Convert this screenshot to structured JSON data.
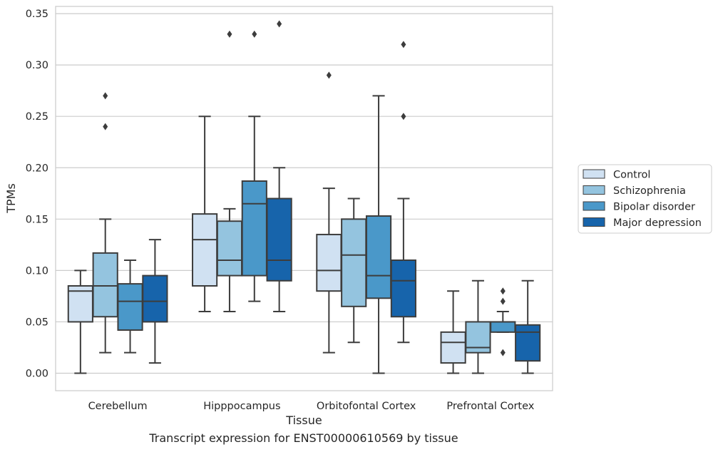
{
  "caption": "Transcript expression for ENST00000610569 by tissue",
  "chart_data": {
    "type": "box",
    "xlabel": "Tissue",
    "ylabel": "TPMs",
    "ylim": [
      -0.017,
      0.357
    ],
    "yticks": [
      0.0,
      0.05,
      0.1,
      0.15,
      0.2,
      0.25,
      0.3,
      0.35
    ],
    "ytick_labels": [
      "0.00",
      "0.05",
      "0.10",
      "0.15",
      "0.20",
      "0.25",
      "0.30",
      "0.35"
    ],
    "grid": "horizontal",
    "legend_position": "right",
    "categories": [
      "Cerebellum",
      "Hipppocampus",
      "Orbitofontal Cortex",
      "Prefrontal Cortex"
    ],
    "series": [
      {
        "name": "Control",
        "color": "#d0e1f2",
        "boxes": [
          {
            "whislo": 0.0,
            "q1": 0.05,
            "med": 0.08,
            "q3": 0.085,
            "whishi": 0.1,
            "fliers": []
          },
          {
            "whislo": 0.06,
            "q1": 0.085,
            "med": 0.13,
            "q3": 0.155,
            "whishi": 0.25,
            "fliers": []
          },
          {
            "whislo": 0.02,
            "q1": 0.08,
            "med": 0.1,
            "q3": 0.135,
            "whishi": 0.18,
            "fliers": [
              0.29
            ]
          },
          {
            "whislo": 0.0,
            "q1": 0.01,
            "med": 0.03,
            "q3": 0.04,
            "whishi": 0.08,
            "fliers": []
          }
        ]
      },
      {
        "name": "Schizophrenia",
        "color": "#94c4df",
        "boxes": [
          {
            "whislo": 0.02,
            "q1": 0.055,
            "med": 0.085,
            "q3": 0.117,
            "whishi": 0.15,
            "fliers": [
              0.24,
              0.27
            ]
          },
          {
            "whislo": 0.06,
            "q1": 0.095,
            "med": 0.11,
            "q3": 0.148,
            "whishi": 0.16,
            "fliers": [
              0.33
            ]
          },
          {
            "whislo": 0.03,
            "q1": 0.065,
            "med": 0.115,
            "q3": 0.15,
            "whishi": 0.17,
            "fliers": []
          },
          {
            "whislo": 0.0,
            "q1": 0.02,
            "med": 0.025,
            "q3": 0.05,
            "whishi": 0.09,
            "fliers": []
          }
        ]
      },
      {
        "name": "Bipolar disorder",
        "color": "#4a98c9",
        "boxes": [
          {
            "whislo": 0.02,
            "q1": 0.042,
            "med": 0.07,
            "q3": 0.087,
            "whishi": 0.11,
            "fliers": []
          },
          {
            "whislo": 0.07,
            "q1": 0.095,
            "med": 0.165,
            "q3": 0.187,
            "whishi": 0.25,
            "fliers": [
              0.33
            ]
          },
          {
            "whislo": 0.0,
            "q1": 0.073,
            "med": 0.095,
            "q3": 0.153,
            "whishi": 0.27,
            "fliers": []
          },
          {
            "whislo": 0.04,
            "q1": 0.04,
            "med": 0.05,
            "q3": 0.05,
            "whishi": 0.06,
            "fliers": [
              0.02,
              0.07,
              0.08
            ]
          }
        ]
      },
      {
        "name": "Major depression",
        "color": "#1764ab",
        "boxes": [
          {
            "whislo": 0.01,
            "q1": 0.05,
            "med": 0.07,
            "q3": 0.095,
            "whishi": 0.13,
            "fliers": []
          },
          {
            "whislo": 0.06,
            "q1": 0.09,
            "med": 0.11,
            "q3": 0.17,
            "whishi": 0.2,
            "fliers": [
              0.34
            ]
          },
          {
            "whislo": 0.03,
            "q1": 0.055,
            "med": 0.09,
            "q3": 0.11,
            "whishi": 0.17,
            "fliers": [
              0.25,
              0.32
            ]
          },
          {
            "whislo": 0.0,
            "q1": 0.012,
            "med": 0.04,
            "q3": 0.047,
            "whishi": 0.09,
            "fliers": []
          }
        ]
      }
    ]
  }
}
